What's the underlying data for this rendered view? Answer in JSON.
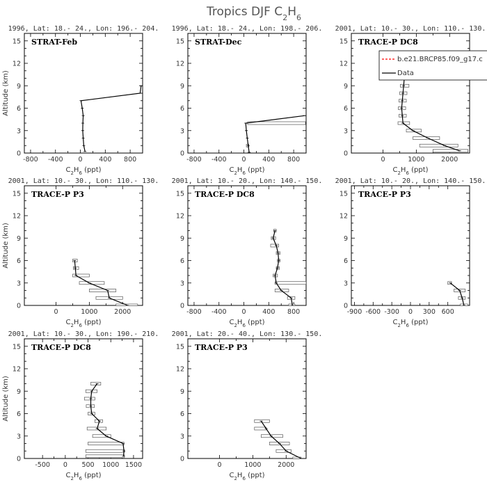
{
  "page": {
    "title": "Tropics DJF C",
    "title_sub": "2",
    "title_tail": "H",
    "title_sub2": "6"
  },
  "common": {
    "ylabel": "Altitude (km)",
    "xlabel_prefix": "C",
    "xlabel_sub1": "2",
    "xlabel_mid": "H",
    "xlabel_sub2": "6",
    "xlabel_unit": " (ppt)"
  },
  "legend": {
    "model_label": "b.e21.BRCP85.f09_g17.c",
    "model_color": "#ff0000",
    "data_label": "Data",
    "data_color": "#000000"
  },
  "chart_data": [
    {
      "type": "line",
      "header": "1996, Lat: 18.- 24., Lon: 196.- 204.",
      "campaign": "STRAT-Feb",
      "xlim": [
        -900,
        1000
      ],
      "xticks": [
        -800,
        -400,
        0,
        400,
        800
      ],
      "ylim": [
        0,
        16
      ],
      "yticks": [
        0,
        3,
        6,
        9,
        12,
        15
      ],
      "ylabel_shown": true,
      "profile": [
        {
          "alt": 0.2,
          "x": 75
        },
        {
          "alt": 1.0,
          "x": 55
        },
        {
          "alt": 2.0,
          "x": 45
        },
        {
          "alt": 3.0,
          "x": 38
        },
        {
          "alt": 4.0,
          "x": 40
        },
        {
          "alt": 5.0,
          "x": 45
        },
        {
          "alt": 6.0,
          "x": 30
        },
        {
          "alt": 7.0,
          "x": 10
        },
        {
          "alt": 8.0,
          "x": 960
        },
        {
          "alt": 9.0,
          "x": 975
        }
      ],
      "bars": []
    },
    {
      "type": "line",
      "header": "1996, Lat: 18.- 24., Lon: 198.- 206.",
      "campaign": "STRAT-Dec",
      "xlim": [
        -900,
        1000
      ],
      "xticks": [
        -800,
        -400,
        0,
        400,
        800
      ],
      "ylim": [
        0,
        16
      ],
      "yticks": [
        0,
        3,
        6,
        9,
        12,
        15
      ],
      "ylabel_shown": false,
      "profile": [
        {
          "alt": 0.1,
          "x": 85
        },
        {
          "alt": 1.0,
          "x": 70
        },
        {
          "alt": 2.0,
          "x": 55
        },
        {
          "alt": 3.0,
          "x": 40
        },
        {
          "alt": 4.0,
          "x": 30
        },
        {
          "alt": 5.0,
          "x": 970
        }
      ],
      "bars": [
        {
          "alt": 4.0,
          "lo": 60,
          "hi": 990
        },
        {
          "alt": 1.0,
          "lo": 40,
          "hi": 80
        }
      ]
    },
    {
      "type": "line",
      "header": "2001, Lat: 10.- 30., Lon: 110.- 130.",
      "campaign": "TRACE-P DC8",
      "xlim": [
        -950,
        2600
      ],
      "xticks": [
        0,
        1000,
        2000
      ],
      "ylim": [
        0,
        16
      ],
      "yticks": [
        0,
        3,
        6,
        9,
        12,
        15
      ],
      "ylabel_shown": false,
      "show_legend": true,
      "profile": [
        {
          "alt": 0.3,
          "x": 2300
        },
        {
          "alt": 1.0,
          "x": 1850
        },
        {
          "alt": 2.0,
          "x": 1350
        },
        {
          "alt": 3.0,
          "x": 900
        },
        {
          "alt": 4.0,
          "x": 600
        },
        {
          "alt": 5.0,
          "x": 580
        },
        {
          "alt": 6.0,
          "x": 560
        },
        {
          "alt": 7.0,
          "x": 580
        },
        {
          "alt": 8.0,
          "x": 600
        },
        {
          "alt": 9.0,
          "x": 620
        },
        {
          "alt": 10.0,
          "x": 640
        }
      ],
      "bars": [
        {
          "alt": 0.3,
          "lo": 1500,
          "hi": 2550
        },
        {
          "alt": 1.0,
          "lo": 1100,
          "hi": 2250
        },
        {
          "alt": 2.0,
          "lo": 900,
          "hi": 1700
        },
        {
          "alt": 3.0,
          "lo": 700,
          "hi": 1150
        },
        {
          "alt": 4.0,
          "lo": 450,
          "hi": 800
        },
        {
          "alt": 5.0,
          "lo": 480,
          "hi": 700
        },
        {
          "alt": 6.0,
          "lo": 460,
          "hi": 680
        },
        {
          "alt": 7.0,
          "lo": 480,
          "hi": 700
        },
        {
          "alt": 8.0,
          "lo": 500,
          "hi": 720
        },
        {
          "alt": 9.0,
          "lo": 520,
          "hi": 780
        },
        {
          "alt": 10.0,
          "lo": 540,
          "hi": 760
        }
      ]
    },
    {
      "type": "line",
      "header": "2001, Lat: 10.- 30., Lon: 110.- 130.",
      "campaign": "TRACE-P P3",
      "xlim": [
        -950,
        2600
      ],
      "xticks": [
        0,
        1000,
        2000
      ],
      "ylim": [
        0,
        16
      ],
      "yticks": [
        0,
        3,
        6,
        9,
        12,
        15
      ],
      "ylabel_shown": true,
      "profile": [
        {
          "alt": 0.0,
          "x": 2150
        },
        {
          "alt": 1.0,
          "x": 1600
        },
        {
          "alt": 2.0,
          "x": 1550
        },
        {
          "alt": 3.0,
          "x": 1000
        },
        {
          "alt": 4.0,
          "x": 600
        },
        {
          "alt": 5.0,
          "x": 580
        },
        {
          "alt": 6.0,
          "x": 560
        }
      ],
      "bars": [
        {
          "alt": 0.0,
          "lo": 1800,
          "hi": 2450
        },
        {
          "alt": 1.0,
          "lo": 1200,
          "hi": 2000
        },
        {
          "alt": 2.0,
          "lo": 1000,
          "hi": 1800
        },
        {
          "alt": 3.0,
          "lo": 700,
          "hi": 1450
        },
        {
          "alt": 4.0,
          "lo": 500,
          "hi": 1000
        },
        {
          "alt": 5.0,
          "lo": 520,
          "hi": 680
        },
        {
          "alt": 6.0,
          "lo": 500,
          "hi": 640
        }
      ]
    },
    {
      "type": "line",
      "header": "2001, Lat: 10.- 20., Lon: 140.- 150.",
      "campaign": "TRACE-P DC8",
      "xlim": [
        -900,
        1000
      ],
      "xticks": [
        -800,
        -400,
        0,
        400,
        800
      ],
      "ylim": [
        0,
        16
      ],
      "yticks": [
        0,
        3,
        6,
        9,
        12,
        15
      ],
      "ylabel_shown": false,
      "profile": [
        {
          "alt": 0.0,
          "x": 780
        },
        {
          "alt": 1.0,
          "x": 760
        },
        {
          "alt": 2.0,
          "x": 600
        },
        {
          "alt": 3.0,
          "x": 520
        },
        {
          "alt": 4.0,
          "x": 500
        },
        {
          "alt": 5.0,
          "x": 540
        },
        {
          "alt": 6.0,
          "x": 560
        },
        {
          "alt": 7.0,
          "x": 550
        },
        {
          "alt": 8.0,
          "x": 520
        },
        {
          "alt": 9.0,
          "x": 470
        },
        {
          "alt": 10.0,
          "x": 500
        }
      ],
      "bars": [
        {
          "alt": 0.0,
          "lo": 720,
          "hi": 820
        },
        {
          "alt": 1.0,
          "lo": 700,
          "hi": 820
        },
        {
          "alt": 2.0,
          "lo": 500,
          "hi": 720
        },
        {
          "alt": 3.0,
          "lo": 500,
          "hi": 1000
        },
        {
          "alt": 4.0,
          "lo": 470,
          "hi": 540
        },
        {
          "alt": 5.0,
          "lo": 520,
          "hi": 570
        },
        {
          "alt": 6.0,
          "lo": 540,
          "hi": 580
        },
        {
          "alt": 7.0,
          "lo": 520,
          "hi": 580
        },
        {
          "alt": 8.0,
          "lo": 430,
          "hi": 560
        },
        {
          "alt": 9.0,
          "lo": 440,
          "hi": 510
        },
        {
          "alt": 10.0,
          "lo": 480,
          "hi": 520
        }
      ]
    },
    {
      "type": "line",
      "header": "2001, Lat: 10.- 20., Lon: 140.- 150.",
      "campaign": "TRACE-P P3",
      "xlim": [
        -950,
        950
      ],
      "xticks": [
        -900,
        -600,
        -300,
        0,
        300,
        600
      ],
      "ylim": [
        0,
        16
      ],
      "yticks": [
        0,
        3,
        6,
        9,
        12,
        15
      ],
      "ylabel_shown": false,
      "profile": [
        {
          "alt": 0.0,
          "x": 860
        },
        {
          "alt": 1.0,
          "x": 830
        },
        {
          "alt": 2.0,
          "x": 790
        },
        {
          "alt": 3.0,
          "x": 640
        }
      ],
      "bars": [
        {
          "alt": 0.0,
          "lo": 800,
          "hi": 920
        },
        {
          "alt": 1.0,
          "lo": 770,
          "hi": 880
        },
        {
          "alt": 2.0,
          "lo": 700,
          "hi": 880
        },
        {
          "alt": 3.0,
          "lo": 600,
          "hi": 660
        }
      ]
    },
    {
      "type": "line",
      "header": "2001, Lat: 10.- 30., Lon: 190.- 210.",
      "campaign": "TRACE-P DC8",
      "xlim": [
        -900,
        1700
      ],
      "xticks": [
        -500,
        0,
        500,
        1000,
        1500
      ],
      "ylim": [
        0,
        16
      ],
      "yticks": [
        0,
        3,
        6,
        9,
        12,
        15
      ],
      "ylabel_shown": true,
      "profile": [
        {
          "alt": 0.3,
          "x": 1280
        },
        {
          "alt": 1.0,
          "x": 1290
        },
        {
          "alt": 2.0,
          "x": 1270
        },
        {
          "alt": 3.0,
          "x": 900
        },
        {
          "alt": 4.0,
          "x": 700
        },
        {
          "alt": 5.0,
          "x": 750
        },
        {
          "alt": 6.0,
          "x": 580
        },
        {
          "alt": 7.0,
          "x": 560
        },
        {
          "alt": 8.0,
          "x": 560
        },
        {
          "alt": 9.0,
          "x": 580
        },
        {
          "alt": 10.0,
          "x": 700
        }
      ],
      "bars": [
        {
          "alt": 0.3,
          "lo": 450,
          "hi": 1300
        },
        {
          "alt": 1.0,
          "lo": 450,
          "hi": 1300
        },
        {
          "alt": 2.0,
          "lo": 500,
          "hi": 1290
        },
        {
          "alt": 3.0,
          "lo": 600,
          "hi": 1000
        },
        {
          "alt": 4.0,
          "lo": 480,
          "hi": 900
        },
        {
          "alt": 5.0,
          "lo": 650,
          "hi": 820
        },
        {
          "alt": 6.0,
          "lo": 500,
          "hi": 650
        },
        {
          "alt": 7.0,
          "lo": 460,
          "hi": 640
        },
        {
          "alt": 8.0,
          "lo": 420,
          "hi": 650
        },
        {
          "alt": 9.0,
          "lo": 450,
          "hi": 700
        },
        {
          "alt": 10.0,
          "lo": 560,
          "hi": 780
        }
      ]
    },
    {
      "type": "line",
      "header": "2001, Lat: 20.- 40., Lon: 130.- 150.",
      "campaign": "TRACE-P P3",
      "xlim": [
        -950,
        2600
      ],
      "xticks": [
        0,
        1000,
        2000
      ],
      "ylim": [
        0,
        16
      ],
      "yticks": [
        0,
        3,
        6,
        9,
        12,
        15
      ],
      "ylabel_shown": false,
      "profile": [
        {
          "alt": 0.0,
          "x": 2450
        },
        {
          "alt": 1.0,
          "x": 2000
        },
        {
          "alt": 2.0,
          "x": 1800
        },
        {
          "alt": 3.0,
          "x": 1550
        },
        {
          "alt": 4.0,
          "x": 1400
        },
        {
          "alt": 5.0,
          "x": 1250
        }
      ],
      "bars": [
        {
          "alt": 0.0,
          "lo": 2200,
          "hi": 2450
        },
        {
          "alt": 1.0,
          "lo": 1700,
          "hi": 2150
        },
        {
          "alt": 2.0,
          "lo": 1500,
          "hi": 2100
        },
        {
          "alt": 3.0,
          "lo": 1250,
          "hi": 1900
        },
        {
          "alt": 4.0,
          "lo": 1050,
          "hi": 1400
        },
        {
          "alt": 5.0,
          "lo": 1050,
          "hi": 1500
        }
      ]
    }
  ]
}
